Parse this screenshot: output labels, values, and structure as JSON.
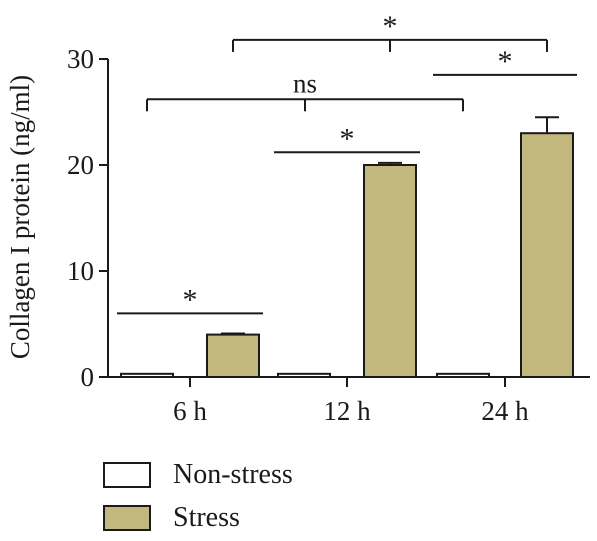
{
  "chart_data": {
    "type": "bar",
    "ylabel": "Collagen I protein (ng/ml)",
    "xlabel": "",
    "categories": [
      "6 h",
      "12 h",
      "24 h"
    ],
    "ylim": [
      0,
      30
    ],
    "yticks": [
      0,
      10,
      20,
      30
    ],
    "series": [
      {
        "name": "Non-stress",
        "color": "#ffffff",
        "values": [
          0.3,
          0.3,
          0.3
        ],
        "errors": [
          0,
          0,
          0
        ]
      },
      {
        "name": "Stress",
        "color": "#c2b77d",
        "values": [
          4.0,
          20.0,
          23.0
        ],
        "errors": [
          0.1,
          0.2,
          1.5
        ]
      }
    ],
    "annotations": [
      {
        "label": "*",
        "from": "6 h / Non-stress",
        "to": "6 h / Stress",
        "y": 6.0,
        "style": "line"
      },
      {
        "label": "*",
        "from": "12 h / Non-stress",
        "to": "12 h / Stress",
        "y": 21.2,
        "style": "line"
      },
      {
        "label": "*",
        "from": "24 h / Non-stress",
        "to": "24 h / Stress",
        "y": 28.5,
        "style": "line"
      },
      {
        "label": "ns",
        "from": "6 h / Non-stress",
        "to": "24 h / Non-stress",
        "y": 26.2,
        "style": "bracket"
      },
      {
        "label": "*",
        "from": "6 h / Stress",
        "to": "24 h / Stress",
        "y": 31.8,
        "style": "bracket"
      }
    ],
    "legend_position": "bottom-left"
  }
}
